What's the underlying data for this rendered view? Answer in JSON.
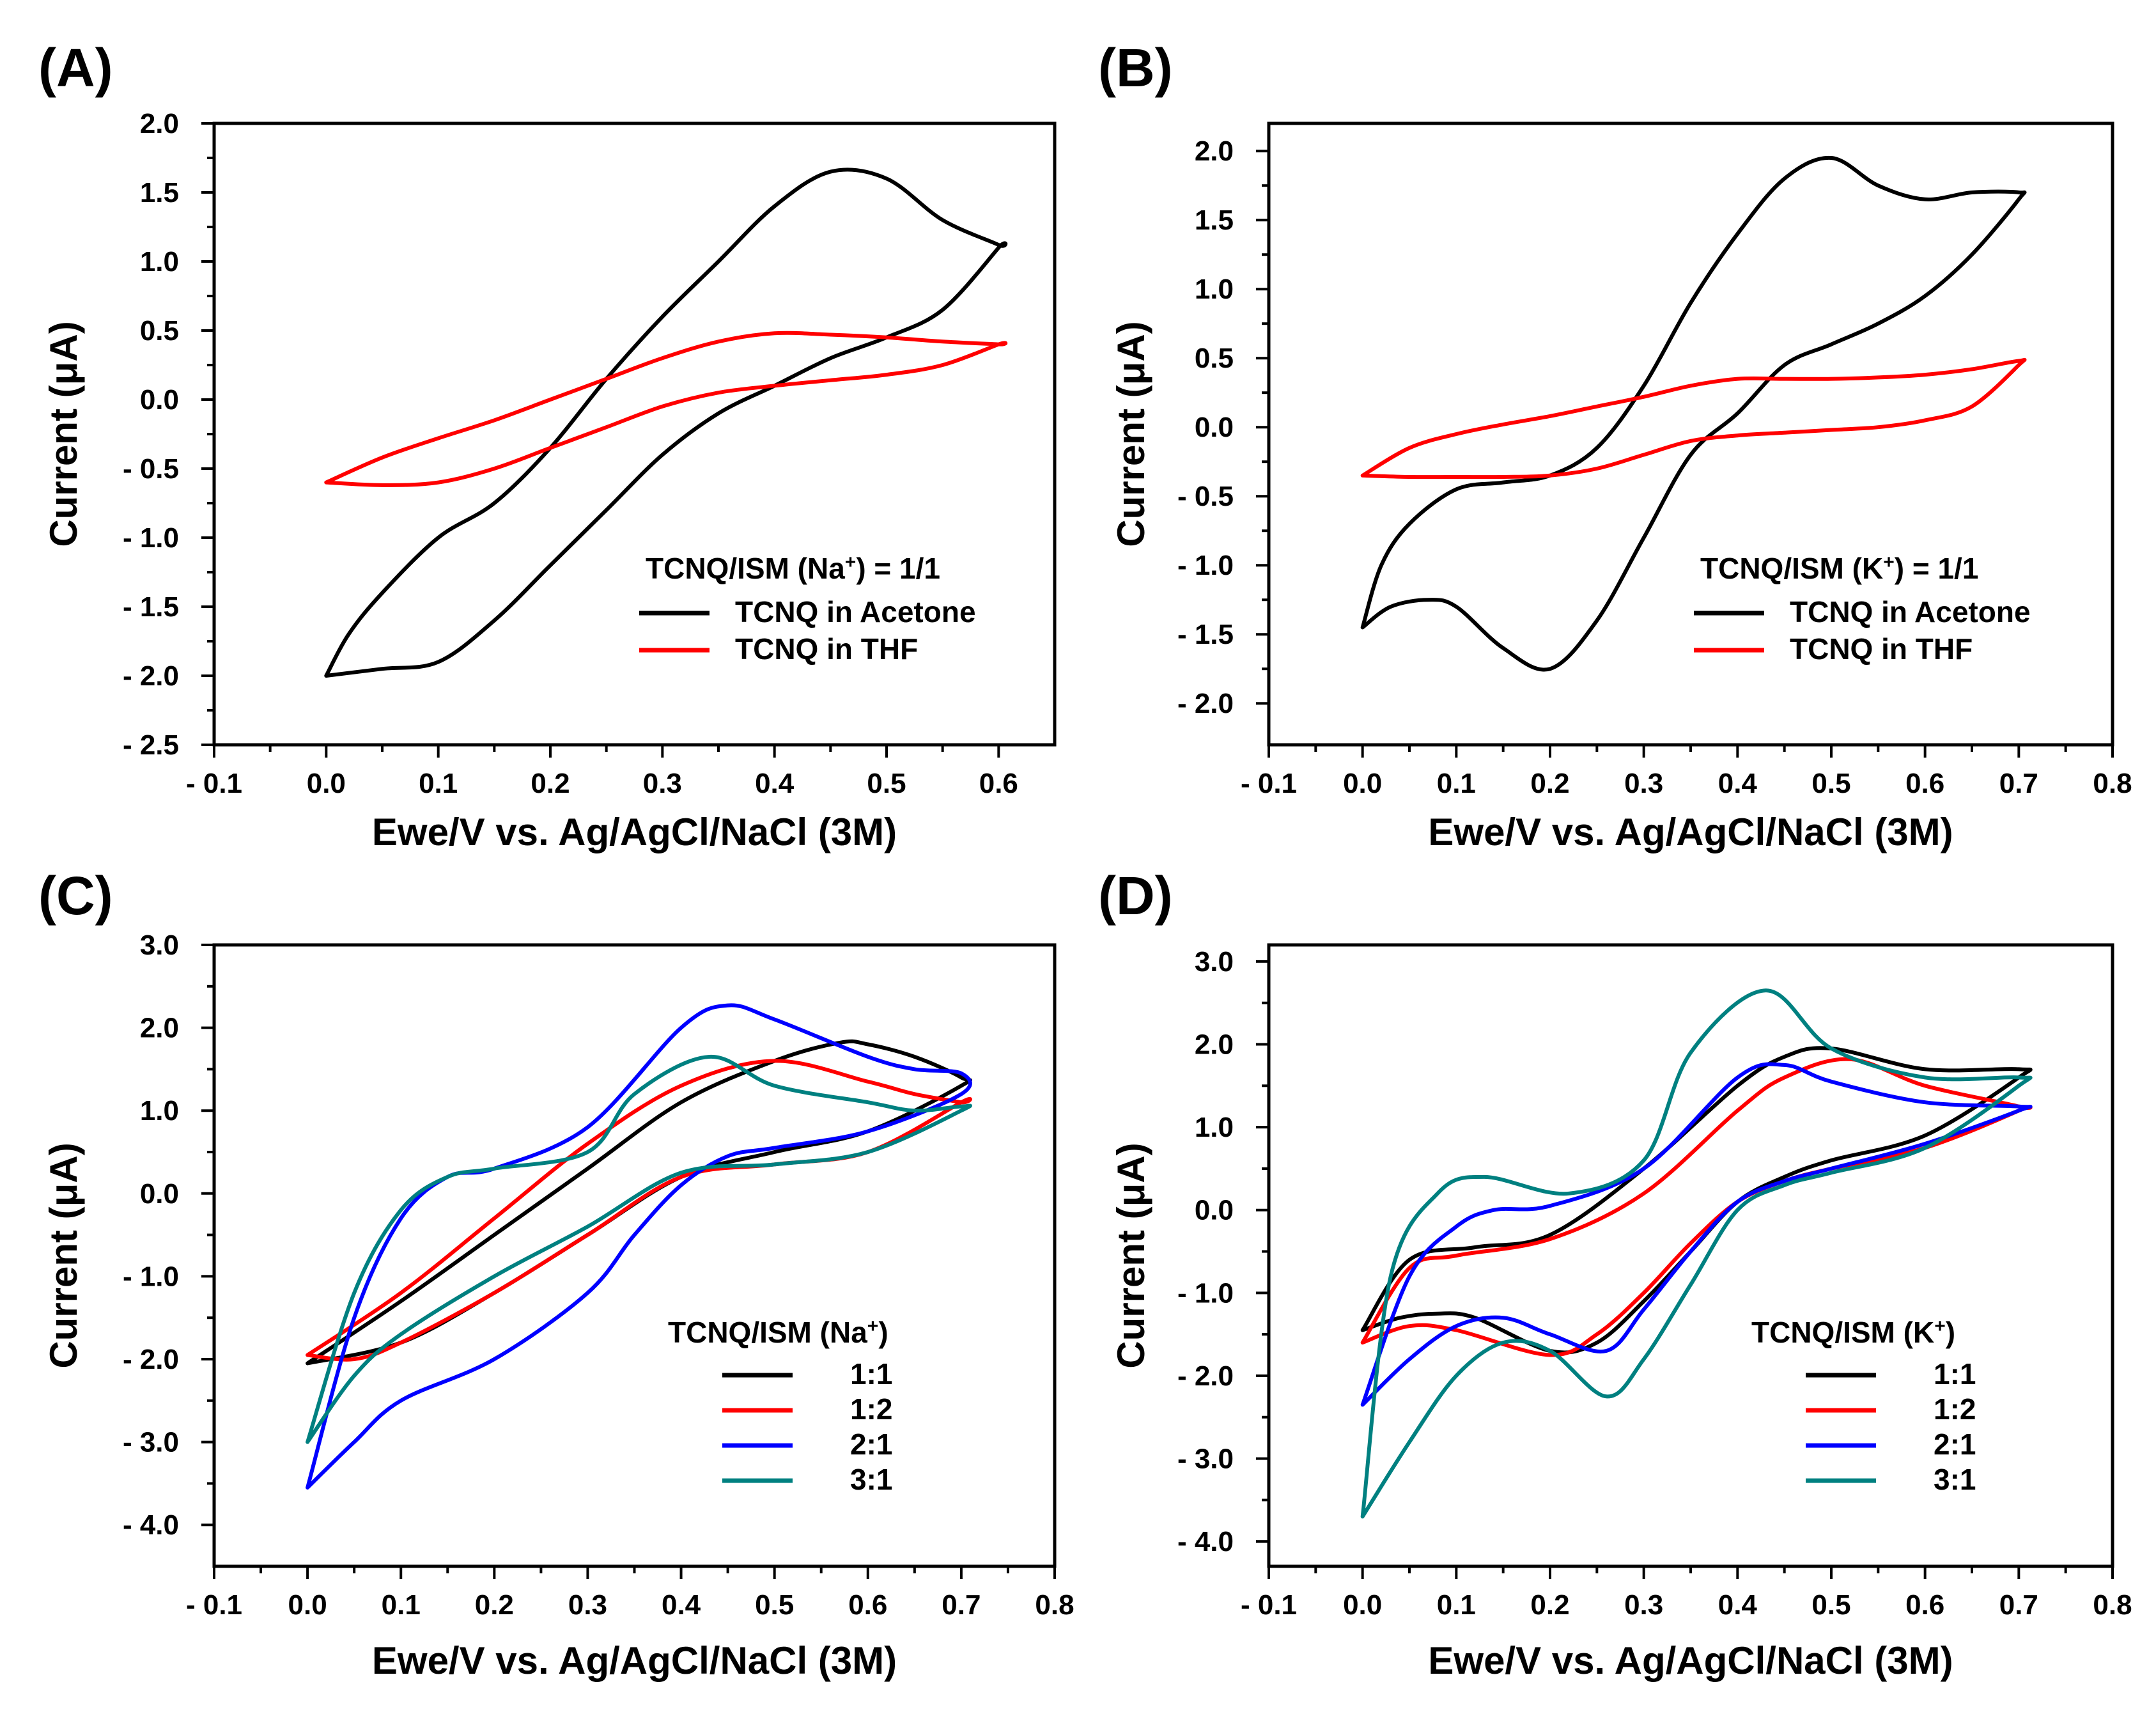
{
  "colors": {
    "black": "#000000",
    "red": "#ff0000",
    "blue": "#0000ff",
    "teal": "#008080"
  },
  "chart_data": [
    {
      "type": "line",
      "panel_label": "(A)",
      "xlabel": "Ewe/V vs. Ag/AgCl/NaCl (3M)",
      "ylabel": "Current (μA)",
      "xlim": [
        -0.1,
        0.65
      ],
      "ylim": [
        -2.5,
        2.0
      ],
      "xticks": [
        -0.1,
        0.0,
        0.1,
        0.2,
        0.3,
        0.4,
        0.5,
        0.6
      ],
      "xtick_labels": [
        "- 0.1",
        "0.0",
        "0.1",
        "0.2",
        "0.3",
        "0.4",
        "0.5",
        "0.6"
      ],
      "yticks": [
        2.0,
        1.5,
        1.0,
        0.5,
        0.0,
        -0.5,
        -1.0,
        -1.5,
        -2.0,
        -2.5
      ],
      "ytick_labels": [
        "2.0",
        "1.5",
        "1.0",
        "0.5",
        "0.0",
        "- 0.5",
        "- 1.0",
        "- 1.5",
        "- 2.0",
        "- 2.5"
      ],
      "legend_title": {
        "pre": "TCNQ/ISM (Na",
        "sup": "+",
        "post": ") = 1/1"
      },
      "legend_position": "lower-right",
      "series": [
        {
          "name": "TCNQ in Acetone",
          "color": "#000000",
          "x": [
            0.0,
            0.05,
            0.1,
            0.15,
            0.2,
            0.25,
            0.3,
            0.35,
            0.4,
            0.45,
            0.5,
            0.55,
            0.6,
            0.6,
            0.55,
            0.5,
            0.45,
            0.4,
            0.35,
            0.3,
            0.25,
            0.2,
            0.15,
            0.1,
            0.05,
            0.02,
            0.0
          ],
          "y": [
            -2.0,
            -1.95,
            -1.9,
            -1.6,
            -1.2,
            -0.8,
            -0.4,
            -0.1,
            0.1,
            0.3,
            0.45,
            0.65,
            1.1,
            1.12,
            1.3,
            1.6,
            1.65,
            1.4,
            1.0,
            0.6,
            0.15,
            -0.35,
            -0.75,
            -1.0,
            -1.4,
            -1.7,
            -2.0
          ]
        },
        {
          "name": "TCNQ in THF",
          "color": "#ff0000",
          "x": [
            0.0,
            0.05,
            0.1,
            0.15,
            0.2,
            0.25,
            0.3,
            0.35,
            0.4,
            0.45,
            0.5,
            0.55,
            0.6,
            0.6,
            0.55,
            0.5,
            0.45,
            0.4,
            0.35,
            0.3,
            0.25,
            0.2,
            0.15,
            0.1,
            0.05,
            0.0
          ],
          "y": [
            -0.6,
            -0.62,
            -0.6,
            -0.5,
            -0.35,
            -0.2,
            -0.05,
            0.05,
            0.1,
            0.14,
            0.18,
            0.25,
            0.4,
            0.4,
            0.42,
            0.45,
            0.47,
            0.48,
            0.42,
            0.3,
            0.15,
            0.0,
            -0.15,
            -0.28,
            -0.42,
            -0.6
          ]
        }
      ]
    },
    {
      "type": "line",
      "panel_label": "(B)",
      "xlabel": "Ewe/V vs. Ag/AgCl/NaCl (3M)",
      "ylabel": "Current (μA)",
      "xlim": [
        -0.1,
        0.8
      ],
      "ylim": [
        -2.3,
        2.2
      ],
      "xticks": [
        -0.1,
        0.0,
        0.1,
        0.2,
        0.3,
        0.4,
        0.5,
        0.6,
        0.7,
        0.8
      ],
      "xtick_labels": [
        "- 0.1",
        "0.0",
        "0.1",
        "0.2",
        "0.3",
        "0.4",
        "0.5",
        "0.6",
        "0.7",
        "0.8"
      ],
      "yticks": [
        2.0,
        1.5,
        1.0,
        0.5,
        0.0,
        -0.5,
        -1.0,
        -1.5,
        -2.0
      ],
      "ytick_labels": [
        "2.0",
        "1.5",
        "1.0",
        "0.5",
        "0.0",
        "- 0.5",
        "- 1.0",
        "- 1.5",
        "- 2.0"
      ],
      "legend_title": {
        "pre": "TCNQ/ISM (K",
        "sup": "+",
        "post": ") = 1/1"
      },
      "legend_position": "lower-right",
      "series": [
        {
          "name": "TCNQ in Acetone",
          "color": "#000000",
          "x": [
            0.0,
            0.03,
            0.07,
            0.1,
            0.15,
            0.2,
            0.25,
            0.3,
            0.35,
            0.4,
            0.45,
            0.5,
            0.55,
            0.6,
            0.65,
            0.7,
            0.7,
            0.65,
            0.6,
            0.55,
            0.5,
            0.45,
            0.4,
            0.35,
            0.3,
            0.25,
            0.2,
            0.15,
            0.1,
            0.05,
            0.02,
            0.0
          ],
          "y": [
            -1.45,
            -1.3,
            -1.25,
            -1.3,
            -1.6,
            -1.75,
            -1.4,
            -0.8,
            -0.2,
            0.1,
            0.45,
            0.6,
            0.75,
            0.95,
            1.25,
            1.65,
            1.7,
            1.7,
            1.65,
            1.75,
            1.95,
            1.8,
            1.4,
            0.9,
            0.3,
            -0.15,
            -0.35,
            -0.4,
            -0.45,
            -0.7,
            -1.0,
            -1.45
          ]
        },
        {
          "name": "TCNQ in THF",
          "color": "#ff0000",
          "x": [
            0.0,
            0.05,
            0.1,
            0.15,
            0.2,
            0.25,
            0.3,
            0.35,
            0.4,
            0.45,
            0.5,
            0.55,
            0.6,
            0.65,
            0.7,
            0.7,
            0.65,
            0.6,
            0.55,
            0.5,
            0.45,
            0.4,
            0.35,
            0.3,
            0.25,
            0.2,
            0.15,
            0.1,
            0.05,
            0.0
          ],
          "y": [
            -0.35,
            -0.36,
            -0.36,
            -0.36,
            -0.35,
            -0.3,
            -0.2,
            -0.1,
            -0.06,
            -0.04,
            -0.02,
            0.0,
            0.05,
            0.15,
            0.45,
            0.48,
            0.42,
            0.38,
            0.36,
            0.35,
            0.35,
            0.35,
            0.3,
            0.22,
            0.15,
            0.08,
            0.02,
            -0.05,
            -0.15,
            -0.35
          ]
        }
      ]
    },
    {
      "type": "line",
      "panel_label": "(C)",
      "xlabel": "Ewe/V vs. Ag/AgCl/NaCl (3M)",
      "ylabel": "Current (μA)",
      "xlim": [
        -0.1,
        0.8
      ],
      "ylim": [
        -4.5,
        3.0
      ],
      "xticks": [
        -0.1,
        0.0,
        0.1,
        0.2,
        0.3,
        0.4,
        0.5,
        0.6,
        0.7,
        0.8
      ],
      "xtick_labels": [
        "- 0.1",
        "0.0",
        "0.1",
        "0.2",
        "0.3",
        "0.4",
        "0.5",
        "0.6",
        "0.7",
        "0.8"
      ],
      "yticks": [
        3.0,
        2.0,
        1.0,
        0.0,
        -1.0,
        -2.0,
        -3.0,
        -4.0
      ],
      "ytick_labels": [
        "3.0",
        "2.0",
        "1.0",
        "0.0",
        "- 1.0",
        "- 2.0",
        "- 3.0",
        "- 4.0"
      ],
      "legend_title": {
        "pre": "TCNQ/ISM (Na",
        "sup": "+",
        "post": ")"
      },
      "legend_position": "lower-right",
      "series": [
        {
          "name": "1:1",
          "color": "#000000",
          "x": [
            0.0,
            0.1,
            0.2,
            0.3,
            0.4,
            0.5,
            0.6,
            0.7,
            0.7,
            0.65,
            0.6,
            0.57,
            0.5,
            0.4,
            0.3,
            0.2,
            0.1,
            0.0
          ],
          "y": [
            -2.05,
            -1.8,
            -1.2,
            -0.5,
            0.2,
            0.5,
            0.75,
            1.3,
            1.4,
            1.65,
            1.8,
            1.82,
            1.6,
            1.1,
            0.3,
            -0.5,
            -1.3,
            -2.05
          ]
        },
        {
          "name": "1:2",
          "color": "#ff0000",
          "x": [
            0.0,
            0.05,
            0.1,
            0.2,
            0.3,
            0.4,
            0.5,
            0.6,
            0.7,
            0.7,
            0.65,
            0.6,
            0.5,
            0.4,
            0.3,
            0.2,
            0.1,
            0.0
          ],
          "y": [
            -1.95,
            -2.0,
            -1.8,
            -1.2,
            -0.5,
            0.2,
            0.35,
            0.5,
            1.1,
            1.1,
            1.2,
            1.35,
            1.6,
            1.3,
            0.6,
            -0.3,
            -1.2,
            -1.95
          ]
        },
        {
          "name": "2:1",
          "color": "#0000ff",
          "x": [
            0.0,
            0.05,
            0.1,
            0.2,
            0.3,
            0.35,
            0.4,
            0.45,
            0.5,
            0.6,
            0.7,
            0.7,
            0.65,
            0.6,
            0.5,
            0.45,
            0.4,
            0.3,
            0.2,
            0.15,
            0.1,
            0.05,
            0.0
          ],
          "y": [
            -3.55,
            -3.0,
            -2.5,
            -2.0,
            -1.2,
            -0.5,
            0.1,
            0.45,
            0.55,
            0.75,
            1.2,
            1.45,
            1.5,
            1.65,
            2.1,
            2.27,
            2.0,
            0.8,
            0.3,
            0.2,
            -0.3,
            -1.5,
            -3.55
          ]
        },
        {
          "name": "3:1",
          "color": "#008080",
          "x": [
            0.0,
            0.05,
            0.1,
            0.2,
            0.3,
            0.4,
            0.5,
            0.6,
            0.7,
            0.7,
            0.65,
            0.6,
            0.5,
            0.43,
            0.35,
            0.3,
            0.2,
            0.15,
            0.1,
            0.05,
            0.0
          ],
          "y": [
            -3.0,
            -2.2,
            -1.7,
            -1.0,
            -0.4,
            0.25,
            0.35,
            0.5,
            1.0,
            1.05,
            1.0,
            1.1,
            1.3,
            1.65,
            1.2,
            0.5,
            0.3,
            0.2,
            -0.2,
            -1.2,
            -3.0
          ]
        }
      ]
    },
    {
      "type": "line",
      "panel_label": "(D)",
      "xlabel": "Ewe/V vs. Ag/AgCl/NaCl (3M)",
      "ylabel": "Current (μA)",
      "xlim": [
        -0.1,
        0.8
      ],
      "ylim": [
        -4.3,
        3.2
      ],
      "xticks": [
        -0.1,
        0.0,
        0.1,
        0.2,
        0.3,
        0.4,
        0.5,
        0.6,
        0.7,
        0.8
      ],
      "xtick_labels": [
        "- 0.1",
        "0.0",
        "0.1",
        "0.2",
        "0.3",
        "0.4",
        "0.5",
        "0.6",
        "0.7",
        "0.8"
      ],
      "yticks": [
        3.0,
        2.0,
        1.0,
        0.0,
        -1.0,
        -2.0,
        -3.0,
        -4.0
      ],
      "ytick_labels": [
        "3.0",
        "2.0",
        "1.0",
        "0.0",
        "- 1.0",
        "- 2.0",
        "- 3.0",
        "- 4.0"
      ],
      "legend_title": {
        "pre": "TCNQ/ISM (K",
        "sup": "+",
        "post": ")"
      },
      "legend_position": "lower-right",
      "series": [
        {
          "name": "1:1",
          "color": "#000000",
          "x": [
            0.0,
            0.04,
            0.08,
            0.12,
            0.2,
            0.25,
            0.3,
            0.35,
            0.4,
            0.45,
            0.5,
            0.6,
            0.7,
            0.7,
            0.6,
            0.5,
            0.45,
            0.4,
            0.3,
            0.2,
            0.12,
            0.05,
            0.0
          ],
          "y": [
            -1.45,
            -1.3,
            -1.25,
            -1.3,
            -1.7,
            -1.6,
            -1.1,
            -0.5,
            0.1,
            0.4,
            0.6,
            0.9,
            1.6,
            1.7,
            1.7,
            1.95,
            1.85,
            1.5,
            0.5,
            -0.3,
            -0.45,
            -0.6,
            -1.45
          ]
        },
        {
          "name": "1:2",
          "color": "#ff0000",
          "x": [
            0.0,
            0.05,
            0.1,
            0.2,
            0.25,
            0.3,
            0.35,
            0.4,
            0.45,
            0.5,
            0.6,
            0.7,
            0.7,
            0.6,
            0.52,
            0.45,
            0.4,
            0.3,
            0.2,
            0.1,
            0.05,
            0.0
          ],
          "y": [
            -1.6,
            -1.4,
            -1.45,
            -1.75,
            -1.5,
            -1.0,
            -0.4,
            0.1,
            0.35,
            0.5,
            0.75,
            1.2,
            1.25,
            1.5,
            1.82,
            1.6,
            1.2,
            0.2,
            -0.35,
            -0.55,
            -0.7,
            -1.6
          ]
        },
        {
          "name": "2:1",
          "color": "#0000ff",
          "x": [
            0.0,
            0.05,
            0.1,
            0.15,
            0.2,
            0.26,
            0.3,
            0.35,
            0.4,
            0.45,
            0.5,
            0.6,
            0.7,
            0.7,
            0.6,
            0.5,
            0.45,
            0.4,
            0.3,
            0.2,
            0.14,
            0.1,
            0.05,
            0.0
          ],
          "y": [
            -2.35,
            -1.8,
            -1.4,
            -1.3,
            -1.5,
            -1.7,
            -1.2,
            -0.5,
            0.1,
            0.35,
            0.5,
            0.8,
            1.2,
            1.25,
            1.3,
            1.55,
            1.75,
            1.6,
            0.5,
            0.05,
            0.0,
            -0.2,
            -0.8,
            -2.35
          ]
        },
        {
          "name": "3:1",
          "color": "#008080",
          "x": [
            0.0,
            0.05,
            0.1,
            0.15,
            0.2,
            0.26,
            0.3,
            0.35,
            0.4,
            0.45,
            0.5,
            0.6,
            0.7,
            0.7,
            0.6,
            0.5,
            0.43,
            0.35,
            0.3,
            0.22,
            0.13,
            0.08,
            0.03,
            0.0
          ],
          "y": [
            -3.7,
            -2.8,
            -2.0,
            -1.6,
            -1.7,
            -2.25,
            -1.8,
            -0.9,
            0.0,
            0.3,
            0.45,
            0.75,
            1.5,
            1.6,
            1.6,
            1.95,
            2.65,
            1.9,
            0.6,
            0.2,
            0.4,
            0.2,
            -0.8,
            -3.7
          ]
        }
      ]
    }
  ]
}
